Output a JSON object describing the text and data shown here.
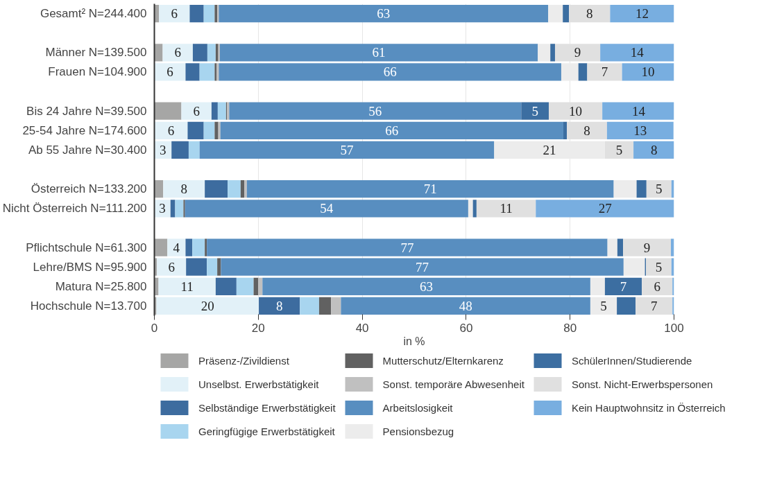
{
  "chart_data": {
    "type": "bar",
    "orientation": "horizontal",
    "stacked": true,
    "categories": [
      "Gesamt² N=244.400",
      null,
      "Männer N=139.500",
      "Frauen N=104.900",
      null,
      "Bis 24 Jahre N=39.500",
      "25-54 Jahre N=174.600",
      "Ab 55 Jahre N=30.400",
      null,
      "Österreich N=133.200",
      "Nicht Österreich N=111.200",
      null,
      "Pflichtschule N=61.300",
      "Lehre/BMS N=95.900",
      "Matura N=25.800",
      "Hochschule N=13.700"
    ],
    "series": [
      {
        "name": "Präsenz-/Zivildienst",
        "color": "#a6a6a5",
        "values": [
          0.9,
          null,
          1.6,
          0,
          null,
          5.2,
          0,
          0,
          null,
          1.7,
          0,
          null,
          2.5,
          0.5,
          0.8,
          0.4
        ],
        "value_labels": [
          null,
          null,
          null,
          null,
          null,
          null,
          null,
          null,
          null,
          null,
          null,
          null,
          null,
          null,
          null,
          null
        ]
      },
      {
        "name": "Unselbst. Erwerbstätigkeit",
        "color": "#e2f1f8",
        "values": [
          5.9,
          null,
          5.8,
          6.0,
          null,
          5.8,
          6.4,
          3.3,
          null,
          8.0,
          3.1,
          null,
          3.5,
          5.6,
          11.0,
          19.7
        ],
        "value_labels": [
          "6",
          null,
          "6",
          "6",
          null,
          "6",
          "6",
          "3",
          null,
          "8",
          "3",
          null,
          "4",
          "6",
          "11",
          "20"
        ]
      },
      {
        "name": "Selbständige Erwerbstätigkeit",
        "color": "#3d6c9f",
        "values": [
          2.7,
          null,
          2.8,
          2.7,
          null,
          1.2,
          3.1,
          3.3,
          null,
          4.4,
          0.9,
          null,
          1.3,
          4.0,
          4.0,
          7.9
        ],
        "value_labels": [
          null,
          null,
          null,
          null,
          null,
          null,
          null,
          null,
          null,
          null,
          null,
          null,
          null,
          null,
          null,
          "8"
        ]
      },
      {
        "name": "Geringfügige Erwerbstätigkeit",
        "color": "#a8d5ef",
        "values": [
          2.1,
          null,
          1.6,
          2.9,
          null,
          1.6,
          2.1,
          2.1,
          null,
          2.5,
          1.6,
          null,
          2.4,
          2.0,
          3.3,
          3.7
        ],
        "value_labels": [
          null,
          null,
          null,
          null,
          null,
          null,
          null,
          null,
          null,
          null,
          null,
          null,
          null,
          null,
          null,
          null
        ]
      },
      {
        "name": "Mutterschutz/Elternkarenz",
        "color": "#616161",
        "values": [
          0.5,
          null,
          0.5,
          0.4,
          null,
          0.2,
          0.7,
          0,
          null,
          0.7,
          0.3,
          null,
          0.4,
          0.7,
          0.9,
          2.3
        ],
        "value_labels": [
          null,
          null,
          null,
          null,
          null,
          null,
          null,
          null,
          null,
          null,
          null,
          null,
          null,
          null,
          null,
          null
        ]
      },
      {
        "name": "Sonst. temporäre Abwesenheit",
        "color": "#c0c0c0",
        "values": [
          0.3,
          null,
          0.3,
          0.4,
          null,
          0.4,
          0.4,
          null,
          null,
          0.5,
          0,
          null,
          0,
          0,
          0.8,
          1.9
        ],
        "value_labels": [
          null,
          null,
          null,
          null,
          null,
          null,
          null,
          null,
          null,
          null,
          null,
          null,
          null,
          null,
          null,
          null
        ]
      },
      {
        "name": "Arbeitslosigkeit",
        "color": "#588ec0",
        "values": [
          63.4,
          null,
          61.2,
          65.9,
          null,
          56.2,
          66.0,
          56.7,
          null,
          70.6,
          54.5,
          null,
          77.1,
          77.5,
          63.1,
          48.0
        ],
        "value_labels": [
          "63",
          null,
          "61",
          "66",
          null,
          "56",
          "66",
          "57",
          null,
          "71",
          "54",
          null,
          "77",
          "77",
          "63",
          "48"
        ]
      },
      {
        "name": "Pensionsbezug",
        "color": "#ececec",
        "values": [
          2.8,
          null,
          2.4,
          3.3,
          null,
          0,
          0,
          21.3,
          null,
          4.4,
          0.9,
          null,
          1.9,
          4.1,
          2.8,
          5.1
        ],
        "value_labels": [
          null,
          null,
          null,
          null,
          null,
          null,
          null,
          "21",
          null,
          null,
          null,
          null,
          null,
          null,
          null,
          "5"
        ]
      },
      {
        "name": "SchülerInnen/Studierende",
        "color": "#3c6ea1",
        "values": [
          1.2,
          null,
          0.9,
          1.7,
          null,
          5.3,
          0.7,
          0,
          null,
          1.9,
          0.7,
          null,
          1.1,
          0.2,
          7.1,
          3.6
        ],
        "value_labels": [
          null,
          null,
          null,
          null,
          null,
          "5",
          null,
          null,
          null,
          null,
          null,
          null,
          null,
          null,
          "7",
          null
        ]
      },
      {
        "name": "Sonst. Nicht-Erwerbspersonen",
        "color": "#e0e0e0",
        "values": [
          7.9,
          null,
          8.7,
          6.7,
          null,
          10.3,
          7.7,
          5.5,
          null,
          4.8,
          11.4,
          null,
          9.2,
          4.9,
          5.9,
          7.1
        ],
        "value_labels": [
          "8",
          null,
          "9",
          "7",
          null,
          "10",
          "8",
          "5",
          null,
          "5",
          "11",
          null,
          "9",
          "5",
          "6",
          "7"
        ]
      },
      {
        "name": "Kein Hauptwohnsitz in Österreich",
        "color": "#78aee0",
        "values": [
          12.3,
          null,
          14.2,
          10.0,
          null,
          14.0,
          12.8,
          7.9,
          null,
          0.5,
          26.7,
          null,
          0.7,
          0.5,
          0.4,
          0.7
        ],
        "value_labels": [
          "12",
          null,
          "14",
          "10",
          null,
          "14",
          "13",
          "8",
          null,
          null,
          "27",
          null,
          null,
          null,
          null,
          null
        ]
      }
    ],
    "xlim": [
      0,
      100
    ],
    "xticks": [
      0,
      20,
      40,
      60,
      80,
      100
    ],
    "xlabel": "in %",
    "grid": "x",
    "legend": "bottom"
  }
}
